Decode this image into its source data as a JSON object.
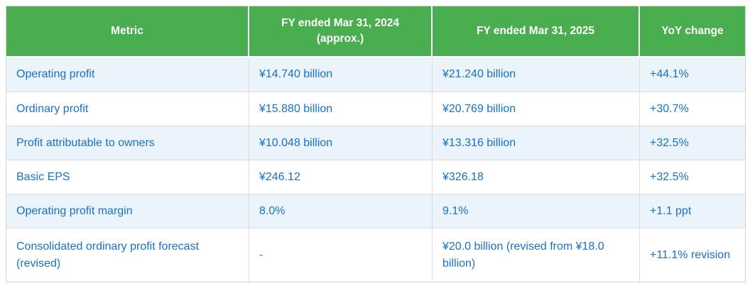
{
  "colors": {
    "header_bg": "#4aad4f",
    "header_text": "#ffffff",
    "row_alt_bg": "#ebf3fb",
    "row_bg": "#ffffff",
    "body_text": "#1672c6",
    "grid_border": "#dcdcdc",
    "outer_border": "#d4d4d4"
  },
  "table": {
    "columns": [
      {
        "label": "Metric"
      },
      {
        "label": "FY ended Mar 31, 2024\n(approx.)"
      },
      {
        "label": "FY ended Mar 31, 2025"
      },
      {
        "label": "YoY change"
      }
    ],
    "rows": [
      {
        "metric": "Operating profit",
        "fy2024": "¥14.740 billion",
        "fy2025": "¥21.240 billion",
        "yoy": "+44.1%"
      },
      {
        "metric": "Ordinary profit",
        "fy2024": "¥15.880 billion",
        "fy2025": "¥20.769 billion",
        "yoy": "+30.7%"
      },
      {
        "metric": "Profit attributable to owners",
        "fy2024": "¥10.048 billion",
        "fy2025": "¥13.316 billion",
        "yoy": "+32.5%"
      },
      {
        "metric": "Basic EPS",
        "fy2024": "¥246.12",
        "fy2025": "¥326.18",
        "yoy": "+32.5%"
      },
      {
        "metric": "Operating profit margin",
        "fy2024": "8.0%",
        "fy2025": "9.1%",
        "yoy": "+1.1 ppt"
      },
      {
        "metric": "Consolidated ordinary profit forecast (revised)",
        "fy2024": "-",
        "fy2025": "¥20.0 billion (revised from ¥18.0 billion)",
        "yoy": "+11.1% revision"
      }
    ]
  },
  "chart_data": {
    "type": "table",
    "columns": [
      "Metric",
      "FY ended Mar 31, 2024 (approx.)",
      "FY ended Mar 31, 2025",
      "YoY change"
    ],
    "rows": [
      [
        "Operating profit",
        "¥14.740 billion",
        "¥21.240 billion",
        "+44.1%"
      ],
      [
        "Ordinary profit",
        "¥15.880 billion",
        "¥20.769 billion",
        "+30.7%"
      ],
      [
        "Profit attributable to owners",
        "¥10.048 billion",
        "¥13.316 billion",
        "+32.5%"
      ],
      [
        "Basic EPS",
        "¥246.12",
        "¥326.18",
        "+32.5%"
      ],
      [
        "Operating profit margin",
        "8.0%",
        "9.1%",
        "+1.1 ppt"
      ],
      [
        "Consolidated ordinary profit forecast (revised)",
        "-",
        "¥20.0 billion (revised from ¥18.0 billion)",
        "+11.1% revision"
      ]
    ]
  }
}
